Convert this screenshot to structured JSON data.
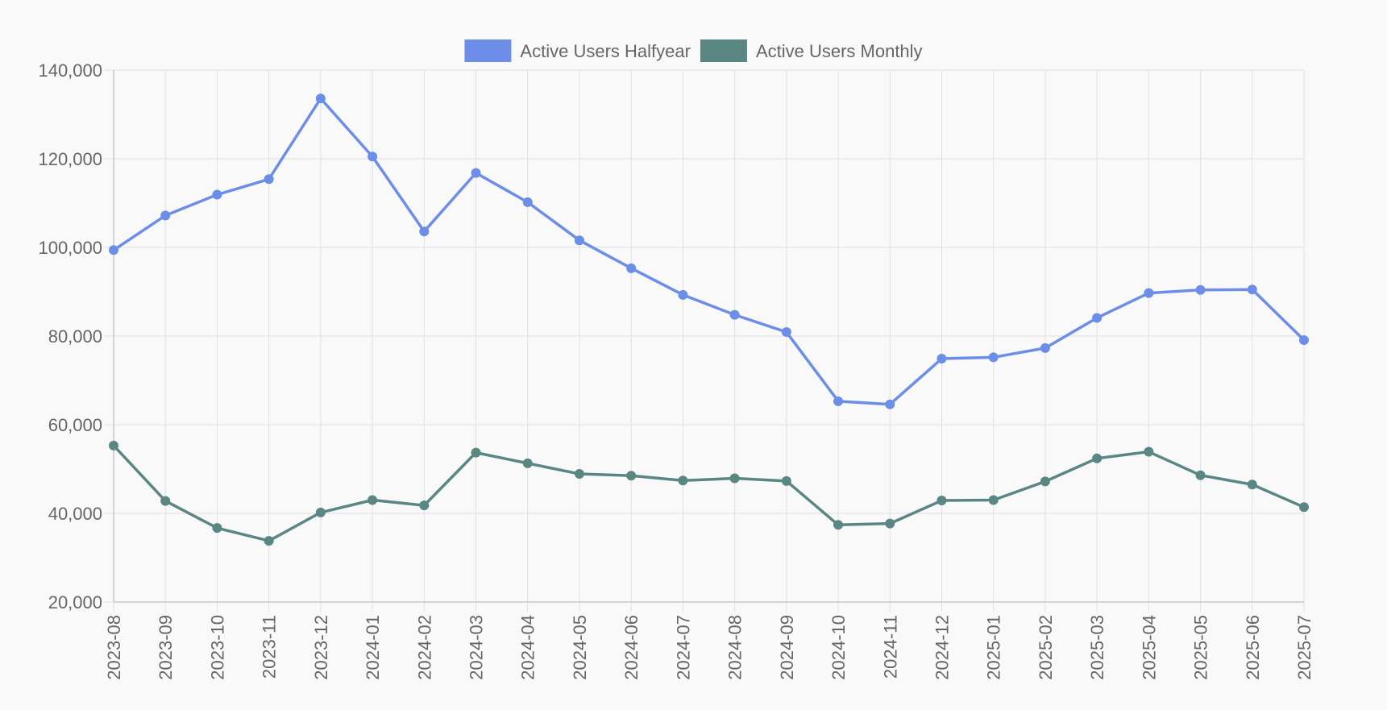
{
  "chart_data": {
    "type": "line",
    "title": "",
    "xlabel": "",
    "ylabel": "",
    "legend": "top-center",
    "grid": true,
    "ylim": [
      20000,
      140000
    ],
    "yticks": [
      "20,000",
      "40,000",
      "60,000",
      "80,000",
      "100,000",
      "120,000",
      "140,000"
    ],
    "categories": [
      "2023-08",
      "2023-09",
      "2023-10",
      "2023-11",
      "2023-12",
      "2024-01",
      "2024-02",
      "2024-03",
      "2024-04",
      "2024-05",
      "2024-06",
      "2024-07",
      "2024-08",
      "2024-09",
      "2024-10",
      "2024-11",
      "2024-12",
      "2025-01",
      "2025-02",
      "2025-03",
      "2025-04",
      "2025-05",
      "2025-06",
      "2025-07"
    ],
    "series": [
      {
        "name": "Active Users Halfyear",
        "color": "#6c8ee8",
        "values": [
          99400,
          107200,
          111900,
          115400,
          133600,
          120500,
          103600,
          116800,
          110200,
          101600,
          95300,
          89300,
          84800,
          80900,
          65300,
          64600,
          74900,
          75200,
          77300,
          84100,
          89700,
          90400,
          90500,
          79100
        ]
      },
      {
        "name": "Active Users Monthly",
        "color": "#5a8784",
        "values": [
          55300,
          42800,
          36700,
          33800,
          40200,
          43000,
          41800,
          53700,
          51300,
          48900,
          48500,
          47400,
          47900,
          47300,
          37400,
          37700,
          42900,
          43000,
          47200,
          52400,
          53900,
          48600,
          46500,
          41400
        ]
      }
    ]
  }
}
